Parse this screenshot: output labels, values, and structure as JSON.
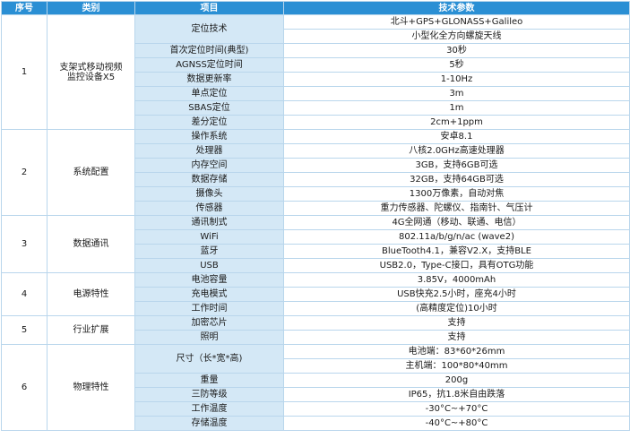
{
  "headers": {
    "seq": "序号",
    "category": "类别",
    "item": "项目",
    "spec": "技术参数"
  },
  "groups": [
    {
      "seq": "1",
      "category": [
        "支架式移动视频",
        "监控设备X5"
      ],
      "rows": [
        {
          "item": "定位技术",
          "values": [
            "北斗+GPS+GLONASS+Galileo",
            "小型化全方向螺旋天线"
          ]
        },
        {
          "item": "首次定位时间(典型)",
          "values": [
            "30秒"
          ]
        },
        {
          "item": "AGNSS定位时间",
          "values": [
            "5秒"
          ]
        },
        {
          "item": "数据更新率",
          "values": [
            "1-10Hz"
          ]
        },
        {
          "item": "单点定位",
          "values": [
            "3m"
          ]
        },
        {
          "item": "SBAS定位",
          "values": [
            "1m"
          ]
        },
        {
          "item": "差分定位",
          "values": [
            "2cm+1ppm"
          ]
        }
      ]
    },
    {
      "seq": "2",
      "category": [
        "系统配置"
      ],
      "rows": [
        {
          "item": "操作系统",
          "values": [
            "安卓8.1"
          ]
        },
        {
          "item": "处理器",
          "values": [
            "八核2.0GHz高速处理器"
          ]
        },
        {
          "item": "内存空间",
          "values": [
            "3GB，支持6GB可选"
          ]
        },
        {
          "item": "数据存储",
          "values": [
            "32GB，支持64GB可选"
          ]
        },
        {
          "item": "摄像头",
          "values": [
            "1300万像素，自动对焦"
          ]
        },
        {
          "item": "传感器",
          "values": [
            "重力传感器、陀螺仪、指南针、气压计"
          ]
        }
      ]
    },
    {
      "seq": "3",
      "category": [
        "数据通讯"
      ],
      "rows": [
        {
          "item": "通讯制式",
          "values": [
            "4G全网通（移动、联通、电信）"
          ]
        },
        {
          "item": "WiFi",
          "values": [
            "802.11a/b/g/n/ac (wave2)"
          ]
        },
        {
          "item": "蓝牙",
          "values": [
            "BlueTooth4.1，兼容V2.X，支持BLE"
          ]
        },
        {
          "item": "USB",
          "values": [
            "USB2.0，Type-C接口，具有OTG功能"
          ]
        }
      ]
    },
    {
      "seq": "4",
      "category": [
        "电源特性"
      ],
      "rows": [
        {
          "item": "电池容量",
          "values": [
            "3.85V，4000mAh"
          ]
        },
        {
          "item": "充电模式",
          "values": [
            "USB快充2.5小时，座充4小时"
          ]
        },
        {
          "item": "工作时间",
          "values": [
            "(高精度定位)10小时"
          ]
        }
      ]
    },
    {
      "seq": "5",
      "category": [
        "行业扩展"
      ],
      "rows": [
        {
          "item": "加密芯片",
          "values": [
            "支持"
          ]
        },
        {
          "item": "照明",
          "values": [
            "支持"
          ]
        }
      ]
    },
    {
      "seq": "6",
      "category": [
        "物理特性"
      ],
      "rows": [
        {
          "item": "尺寸（长*宽*高)",
          "values": [
            "电池端：83*60*26mm",
            "主机端：100*80*40mm"
          ]
        },
        {
          "item": "重量",
          "values": [
            "200g"
          ]
        },
        {
          "item": "三防等级",
          "values": [
            "IP65，抗1.8米自由跌落"
          ]
        },
        {
          "item": "工作温度",
          "values": [
            "-30°C~+70°C"
          ]
        },
        {
          "item": "存储温度",
          "values": [
            "-40°C~+80°C"
          ]
        }
      ]
    }
  ]
}
